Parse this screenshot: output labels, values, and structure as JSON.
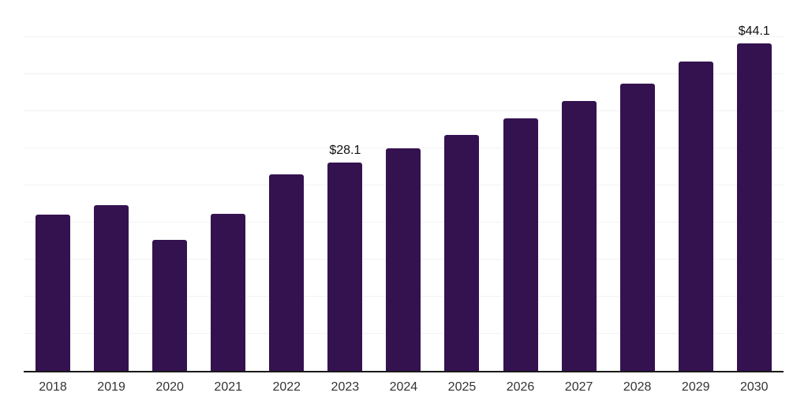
{
  "chart_data": {
    "type": "bar",
    "categories": [
      "2018",
      "2019",
      "2020",
      "2021",
      "2022",
      "2023",
      "2024",
      "2025",
      "2026",
      "2027",
      "2028",
      "2029",
      "2030"
    ],
    "values": [
      21.1,
      22.3,
      17.7,
      21.2,
      26.5,
      28.1,
      30.0,
      31.8,
      34.0,
      36.4,
      38.7,
      41.7,
      44.1
    ],
    "data_labels": {
      "2023": "$28.1",
      "2030": "$44.1"
    },
    "xlabel": "",
    "ylabel": "",
    "ylim": [
      0,
      50
    ],
    "gridline_step": 5,
    "grid": "horizontal-only",
    "legend": "none",
    "colors": {
      "bar": "#341250",
      "axis": "#1a1a1a",
      "gridline": "#f2f2f4",
      "tick_label": "#333333",
      "data_label": "#111111",
      "background": "#ffffff"
    }
  }
}
